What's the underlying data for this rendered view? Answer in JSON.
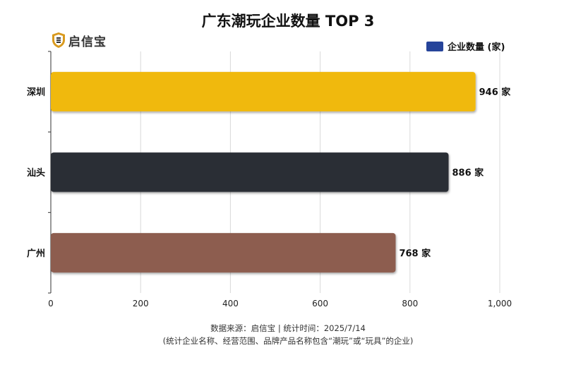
{
  "logo": {
    "text": "启信宝"
  },
  "chart_data": {
    "type": "bar",
    "orientation": "horizontal",
    "title": "广东潮玩企业数量 TOP 3",
    "categories": [
      "深圳",
      "汕头",
      "广州"
    ],
    "series": [
      {
        "name": "企业数量 (家)",
        "values": [
          946,
          886,
          768
        ]
      }
    ],
    "bar_colors": [
      "#f0b90d",
      "#2b2d36",
      "#8d5d50"
    ],
    "legend_color": "#26449a",
    "value_unit": "家",
    "xlim": [
      0,
      1000
    ],
    "x_ticks": [
      0,
      200,
      400,
      600,
      800,
      1000
    ],
    "x_tick_labels": [
      "0",
      "200",
      "400",
      "600",
      "800",
      "1,000"
    ],
    "grid": true,
    "legend_position": "top-right"
  },
  "footer": {
    "source": "数据来源：启信宝 | 统计时间：2025/7/14",
    "note": "(统计企业名称、经营范围、品牌产品名称包含“潮玩”或“玩具”的企业)"
  }
}
